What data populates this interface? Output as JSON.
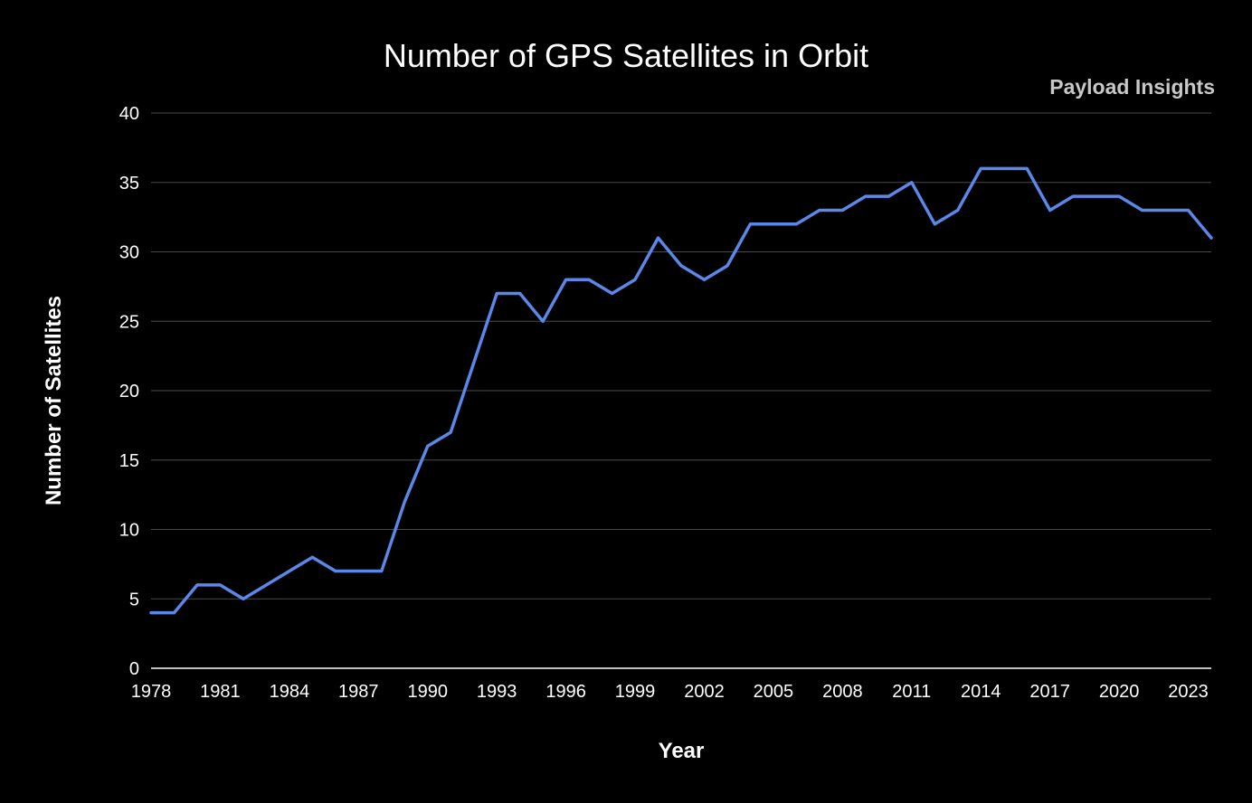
{
  "watermark": "Payload Insights",
  "colors": {
    "background": "#000000",
    "line": "#5b87e8",
    "grid": "#4a4a4a",
    "text": "#ffffff"
  },
  "chart_data": {
    "type": "line",
    "title": "Number of GPS Satellites in Orbit",
    "xlabel": "Year",
    "ylabel": "Number of Satellites",
    "xlim": [
      1978,
      2024
    ],
    "ylim": [
      0,
      40
    ],
    "x_ticks": [
      1978,
      1981,
      1984,
      1987,
      1990,
      1993,
      1996,
      1999,
      2002,
      2005,
      2008,
      2011,
      2014,
      2017,
      2020,
      2023
    ],
    "y_ticks": [
      0,
      5,
      10,
      15,
      20,
      25,
      30,
      35,
      40
    ],
    "grid": true,
    "legend": "none",
    "x": [
      1978,
      1979,
      1980,
      1981,
      1982,
      1983,
      1984,
      1985,
      1986,
      1987,
      1988,
      1989,
      1990,
      1991,
      1992,
      1993,
      1994,
      1995,
      1996,
      1997,
      1998,
      1999,
      2000,
      2001,
      2002,
      2003,
      2004,
      2005,
      2006,
      2007,
      2008,
      2009,
      2010,
      2011,
      2012,
      2013,
      2014,
      2015,
      2016,
      2017,
      2018,
      2019,
      2020,
      2021,
      2022,
      2023,
      2024
    ],
    "series": [
      {
        "values": [
          4,
          4,
          6,
          6,
          5,
          6,
          7,
          8,
          7,
          7,
          7,
          12,
          16,
          17,
          22,
          27,
          27,
          25,
          28,
          28,
          27,
          28,
          31,
          29,
          28,
          29,
          32,
          32,
          32,
          33,
          33,
          34,
          34,
          35,
          32,
          33,
          36,
          36,
          36,
          33,
          34,
          34,
          34,
          33,
          33,
          33,
          31
        ]
      }
    ]
  }
}
